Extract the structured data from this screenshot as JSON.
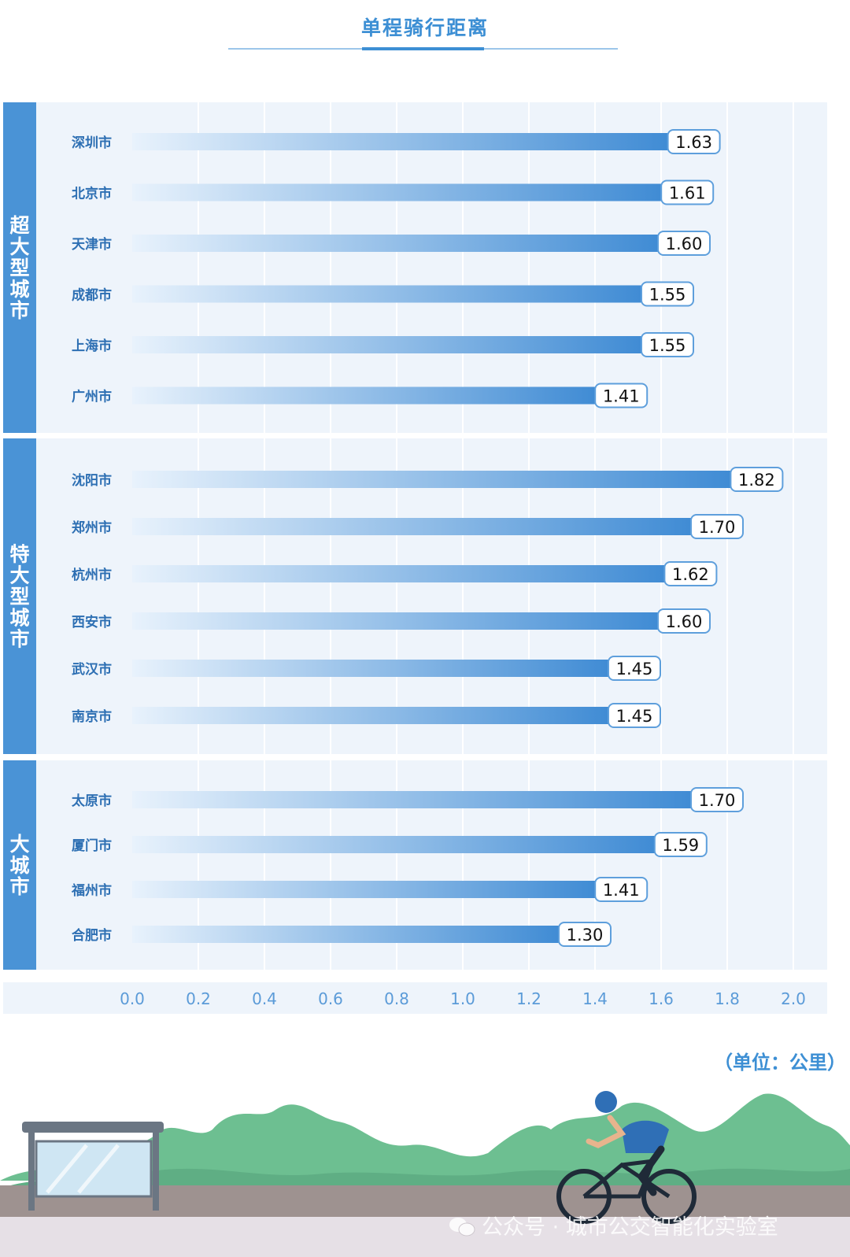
{
  "title": "单程骑行距离",
  "unit": "（单位：公里）",
  "watermark": "公众号 · 城市公交智能化实验室",
  "colors": {
    "accent": "#3d8fd4",
    "group_bar": "#4a93d6",
    "bar_start": "#e6f1fb",
    "bar_end": "#3f8bd4",
    "panel_bg": "#eef4fb",
    "label": "#2d6fb3"
  },
  "chart_data": {
    "type": "bar",
    "orientation": "horizontal",
    "title": "单程骑行距离",
    "xlabel": "（单位：公里）",
    "xlim": [
      0.0,
      2.0
    ],
    "x_ticks": [
      "0.0",
      "0.2",
      "0.4",
      "0.6",
      "0.8",
      "1.0",
      "1.2",
      "1.4",
      "1.6",
      "1.8",
      "2.0"
    ],
    "groups": [
      {
        "name": "超大型城市",
        "categories": [
          "深圳市",
          "北京市",
          "天津市",
          "成都市",
          "上海市",
          "广州市"
        ],
        "values": [
          1.63,
          1.61,
          1.6,
          1.55,
          1.55,
          1.41
        ],
        "labels": [
          "1.63",
          "1.61",
          "1.60",
          "1.55",
          "1.55",
          "1.41"
        ]
      },
      {
        "name": "特大型城市",
        "categories": [
          "沈阳市",
          "郑州市",
          "杭州市",
          "西安市",
          "武汉市",
          "南京市"
        ],
        "values": [
          1.82,
          1.7,
          1.62,
          1.6,
          1.45,
          1.45
        ],
        "labels": [
          "1.82",
          "1.70",
          "1.62",
          "1.60",
          "1.45",
          "1.45"
        ]
      },
      {
        "name": "大城市",
        "categories": [
          "太原市",
          "厦门市",
          "福州市",
          "合肥市"
        ],
        "values": [
          1.7,
          1.59,
          1.41,
          1.3
        ],
        "labels": [
          "1.70",
          "1.59",
          "1.41",
          "1.30"
        ]
      }
    ]
  }
}
